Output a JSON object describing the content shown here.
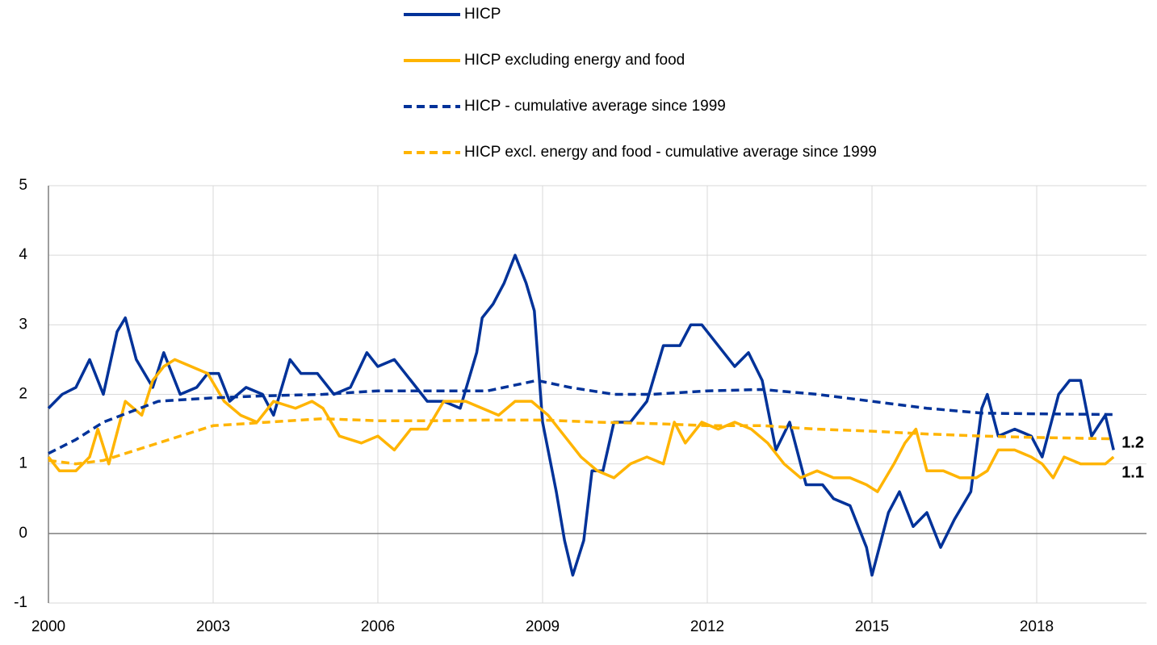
{
  "chart_data": {
    "type": "line",
    "xlim": [
      2000,
      2020
    ],
    "xticks": [
      2000,
      2003,
      2006,
      2009,
      2012,
      2015,
      2018
    ],
    "ylim": [
      -1,
      5
    ],
    "yticks": [
      -1,
      0,
      1,
      2,
      3,
      4,
      5
    ],
    "grid": true,
    "series": [
      {
        "name": "HICP",
        "color": "#003299",
        "line_style": "solid",
        "end_label": "1.2",
        "x": [
          2000.0,
          2000.25,
          2000.5,
          2000.75,
          2001.0,
          2001.25,
          2001.4,
          2001.6,
          2001.9,
          2002.1,
          2002.4,
          2002.7,
          2002.9,
          2003.1,
          2003.3,
          2003.6,
          2003.9,
          2004.1,
          2004.4,
          2004.6,
          2004.9,
          2005.2,
          2005.5,
          2005.8,
          2006.0,
          2006.3,
          2006.6,
          2006.9,
          2007.2,
          2007.5,
          2007.8,
          2007.9,
          2008.1,
          2008.3,
          2008.5,
          2008.7,
          2008.85,
          2009.0,
          2009.25,
          2009.4,
          2009.55,
          2009.75,
          2009.9,
          2010.1,
          2010.3,
          2010.6,
          2010.9,
          2011.2,
          2011.5,
          2011.7,
          2011.9,
          2012.2,
          2012.5,
          2012.75,
          2013.0,
          2013.25,
          2013.5,
          2013.8,
          2014.1,
          2014.3,
          2014.6,
          2014.9,
          2015.0,
          2015.3,
          2015.5,
          2015.75,
          2016.0,
          2016.25,
          2016.5,
          2016.8,
          2017.0,
          2017.1,
          2017.3,
          2017.6,
          2017.9,
          2018.1,
          2018.4,
          2018.6,
          2018.8,
          2019.0,
          2019.25,
          2019.4
        ],
        "values": [
          1.8,
          2.0,
          2.1,
          2.5,
          2.0,
          2.9,
          3.1,
          2.5,
          2.1,
          2.6,
          2.0,
          2.1,
          2.3,
          2.3,
          1.9,
          2.1,
          2.0,
          1.7,
          2.5,
          2.3,
          2.3,
          2.0,
          2.1,
          2.6,
          2.4,
          2.5,
          2.2,
          1.9,
          1.9,
          1.8,
          2.6,
          3.1,
          3.3,
          3.6,
          4.0,
          3.6,
          3.2,
          1.6,
          0.6,
          -0.1,
          -0.6,
          -0.1,
          0.9,
          0.9,
          1.6,
          1.6,
          1.9,
          2.7,
          2.7,
          3.0,
          3.0,
          2.7,
          2.4,
          2.6,
          2.2,
          1.2,
          1.6,
          0.7,
          0.7,
          0.5,
          0.4,
          -0.2,
          -0.6,
          0.3,
          0.6,
          0.1,
          0.3,
          -0.2,
          0.2,
          0.6,
          1.8,
          2.0,
          1.4,
          1.5,
          1.4,
          1.1,
          2.0,
          2.2,
          2.2,
          1.4,
          1.7,
          1.2
        ]
      },
      {
        "name": "HICP excluding energy and food",
        "color": "#ffb400",
        "line_style": "solid",
        "end_label": "1.1",
        "x": [
          2000.0,
          2000.2,
          2000.5,
          2000.75,
          2000.9,
          2001.1,
          2001.4,
          2001.7,
          2001.9,
          2002.1,
          2002.3,
          2002.6,
          2002.9,
          2003.2,
          2003.5,
          2003.8,
          2004.1,
          2004.5,
          2004.8,
          2005.0,
          2005.3,
          2005.7,
          2006.0,
          2006.3,
          2006.6,
          2006.9,
          2007.2,
          2007.6,
          2007.9,
          2008.2,
          2008.5,
          2008.8,
          2009.1,
          2009.4,
          2009.7,
          2010.0,
          2010.3,
          2010.6,
          2010.9,
          2011.2,
          2011.4,
          2011.6,
          2011.9,
          2012.2,
          2012.5,
          2012.8,
          2013.1,
          2013.4,
          2013.7,
          2014.0,
          2014.3,
          2014.6,
          2014.9,
          2015.1,
          2015.4,
          2015.6,
          2015.8,
          2016.0,
          2016.3,
          2016.6,
          2016.9,
          2017.1,
          2017.3,
          2017.6,
          2017.9,
          2018.1,
          2018.3,
          2018.5,
          2018.8,
          2019.0,
          2019.25,
          2019.4
        ],
        "values": [
          1.1,
          0.9,
          0.9,
          1.1,
          1.5,
          1.0,
          1.9,
          1.7,
          2.2,
          2.4,
          2.5,
          2.4,
          2.3,
          1.9,
          1.7,
          1.6,
          1.9,
          1.8,
          1.9,
          1.8,
          1.4,
          1.3,
          1.4,
          1.2,
          1.5,
          1.5,
          1.9,
          1.9,
          1.8,
          1.7,
          1.9,
          1.9,
          1.7,
          1.4,
          1.1,
          0.9,
          0.8,
          1.0,
          1.1,
          1.0,
          1.6,
          1.3,
          1.6,
          1.5,
          1.6,
          1.5,
          1.3,
          1.0,
          0.8,
          0.9,
          0.8,
          0.8,
          0.7,
          0.6,
          1.0,
          1.3,
          1.5,
          0.9,
          0.9,
          0.8,
          0.8,
          0.9,
          1.2,
          1.2,
          1.1,
          1.0,
          0.8,
          1.1,
          1.0,
          1.0,
          1.0,
          1.1
        ]
      },
      {
        "name": "HICP - cumulative average since 1999",
        "color": "#003299",
        "line_style": "dashed",
        "x": [
          2000,
          2000.5,
          2001,
          2001.5,
          2002,
          2003,
          2004,
          2005,
          2006,
          2007,
          2008,
          2008.9,
          2009.5,
          2010.3,
          2011,
          2012,
          2013,
          2014,
          2015,
          2016,
          2017,
          2018,
          2019.4
        ],
        "values": [
          1.15,
          1.35,
          1.6,
          1.75,
          1.9,
          1.95,
          1.98,
          2.0,
          2.05,
          2.05,
          2.05,
          2.2,
          2.1,
          2.0,
          2.0,
          2.05,
          2.07,
          2.0,
          1.9,
          1.8,
          1.73,
          1.72,
          1.71
        ]
      },
      {
        "name": "HICP excl. energy and food - cumulative average since 1999",
        "color": "#ffb400",
        "line_style": "dashed",
        "x": [
          2000,
          2000.5,
          2001,
          2002,
          2003,
          2004,
          2005,
          2006,
          2007,
          2008,
          2009,
          2010,
          2011,
          2012,
          2013,
          2014,
          2015,
          2016,
          2017,
          2018,
          2019.4
        ],
        "values": [
          1.05,
          1.0,
          1.05,
          1.3,
          1.55,
          1.6,
          1.65,
          1.62,
          1.62,
          1.63,
          1.63,
          1.6,
          1.58,
          1.55,
          1.55,
          1.5,
          1.47,
          1.43,
          1.4,
          1.38,
          1.36
        ]
      }
    ]
  }
}
